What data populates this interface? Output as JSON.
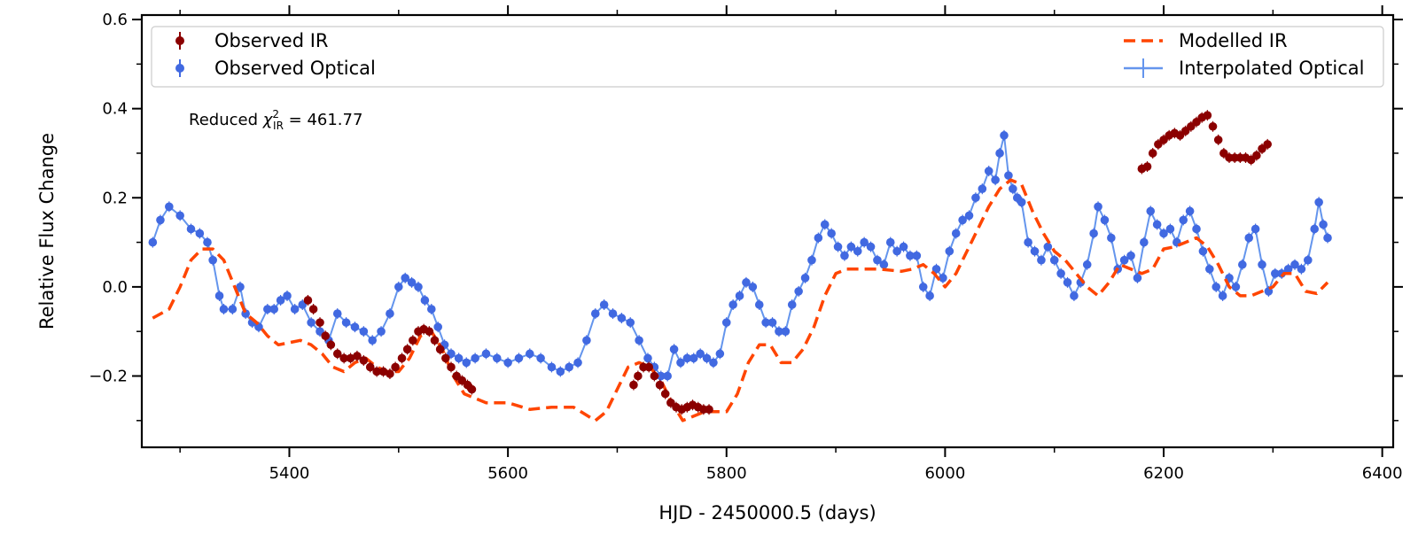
{
  "chart_data": {
    "type": "line",
    "xlabel": "HJD - 2450000.5 (days)",
    "ylabel": "Relative Flux Change",
    "xlim": [
      5265,
      6410
    ],
    "ylim": [
      -0.36,
      0.61
    ],
    "xticks": [
      5400,
      5600,
      5800,
      6000,
      6200,
      6400
    ],
    "xtick_labels": [
      "5400",
      "5600",
      "5800",
      "6000",
      "6200",
      "6400"
    ],
    "yticks": [
      -0.2,
      0.0,
      0.2,
      0.4,
      0.6
    ],
    "ytick_labels": [
      "−0.2",
      "0.0",
      "0.2",
      "0.4",
      "0.6"
    ],
    "grid": false,
    "legend_position": "top",
    "annotation": {
      "prefix": "Reduced ",
      "symbol": "χ",
      "superscript": "2",
      "subscript": "IR",
      "suffix": " = 461.77"
    },
    "colors": {
      "observed_ir": "#8b0000",
      "observed_optical": "#4169e1",
      "modelled_ir": "#ff4500",
      "interpolated_optical": "#6495ed"
    },
    "series": [
      {
        "name": "Observed IR",
        "style": "errorbar-marker",
        "x": [
          5417,
          5422,
          5428,
          5433,
          5438,
          5444,
          5450,
          5456,
          5462,
          5468,
          5474,
          5480,
          5486,
          5492,
          5497,
          5503,
          5508,
          5513,
          5518,
          5523,
          5528,
          5533,
          5538,
          5543,
          5548,
          5553,
          5558,
          5563,
          5567,
          5715,
          5719,
          5724,
          5729,
          5734,
          5739,
          5744,
          5749,
          5754,
          5759,
          5764,
          5769,
          5774,
          5779,
          5784,
          6180,
          6185,
          6190,
          6195,
          6200,
          6205,
          6210,
          6215,
          6220,
          6225,
          6230,
          6235,
          6240,
          6245,
          6250,
          6255,
          6260,
          6265,
          6270,
          6275,
          6280,
          6285,
          6290,
          6295
        ],
        "y": [
          -0.03,
          -0.05,
          -0.08,
          -0.11,
          -0.13,
          -0.15,
          -0.16,
          -0.16,
          -0.155,
          -0.165,
          -0.18,
          -0.19,
          -0.19,
          -0.195,
          -0.18,
          -0.16,
          -0.14,
          -0.12,
          -0.1,
          -0.095,
          -0.1,
          -0.12,
          -0.14,
          -0.16,
          -0.18,
          -0.2,
          -0.21,
          -0.22,
          -0.23,
          -0.22,
          -0.2,
          -0.18,
          -0.18,
          -0.2,
          -0.22,
          -0.24,
          -0.26,
          -0.27,
          -0.275,
          -0.27,
          -0.265,
          -0.27,
          -0.275,
          -0.275,
          0.265,
          0.27,
          0.3,
          0.32,
          0.33,
          0.34,
          0.345,
          0.34,
          0.35,
          0.36,
          0.37,
          0.38,
          0.385,
          0.36,
          0.33,
          0.3,
          0.29,
          0.29,
          0.29,
          0.29,
          0.285,
          0.295,
          0.31,
          0.32
        ]
      },
      {
        "name": "Observed Optical",
        "style": "errorbar-marker",
        "x": [
          5275,
          5282,
          5290,
          5300,
          5310,
          5318,
          5325,
          5330,
          5336,
          5340,
          5348,
          5355,
          5360,
          5366,
          5372,
          5380,
          5386,
          5392,
          5398,
          5405,
          5412,
          5420,
          5428,
          5436,
          5444,
          5452,
          5460,
          5468,
          5476,
          5484,
          5492,
          5500,
          5506,
          5512,
          5518,
          5524,
          5530,
          5536,
          5542,
          5548,
          5555,
          5562,
          5570,
          5580,
          5590,
          5600,
          5610,
          5620,
          5630,
          5640,
          5648,
          5656,
          5664,
          5672,
          5680,
          5688,
          5696,
          5704,
          5712,
          5720,
          5728,
          5734,
          5740,
          5746,
          5752,
          5758,
          5764,
          5770,
          5776,
          5782,
          5788,
          5794,
          5800,
          5806,
          5812,
          5818,
          5824,
          5830,
          5836,
          5842,
          5848,
          5854,
          5860,
          5866,
          5872,
          5878,
          5884,
          5890,
          5896,
          5902,
          5908,
          5914,
          5920,
          5926,
          5932,
          5938,
          5944,
          5950,
          5956,
          5962,
          5968,
          5974,
          5980,
          5986,
          5992,
          5998,
          6004,
          6010,
          6016,
          6022,
          6028,
          6034,
          6040,
          6046,
          6050,
          6054,
          6058,
          6062,
          6066,
          6070,
          6076,
          6082,
          6088,
          6094,
          6100,
          6106,
          6112,
          6118,
          6124,
          6130,
          6136,
          6140,
          6146,
          6152,
          6158,
          6164,
          6170,
          6176,
          6182,
          6188,
          6194,
          6200,
          6206,
          6212,
          6218,
          6224,
          6230,
          6236,
          6242,
          6248,
          6254,
          6260,
          6266,
          6272,
          6278,
          6284,
          6290,
          6296,
          6302,
          6308,
          6314,
          6320,
          6326,
          6332,
          6338,
          6342,
          6346,
          6350
        ],
        "y": [
          0.1,
          0.15,
          0.18,
          0.16,
          0.13,
          0.12,
          0.1,
          0.06,
          -0.02,
          -0.05,
          -0.05,
          0.0,
          -0.06,
          -0.08,
          -0.09,
          -0.05,
          -0.05,
          -0.03,
          -0.02,
          -0.05,
          -0.04,
          -0.08,
          -0.1,
          -0.12,
          -0.06,
          -0.08,
          -0.09,
          -0.1,
          -0.12,
          -0.1,
          -0.06,
          0.0,
          0.02,
          0.01,
          0.0,
          -0.03,
          -0.05,
          -0.09,
          -0.13,
          -0.15,
          -0.16,
          -0.17,
          -0.16,
          -0.15,
          -0.16,
          -0.17,
          -0.16,
          -0.15,
          -0.16,
          -0.18,
          -0.19,
          -0.18,
          -0.17,
          -0.12,
          -0.06,
          -0.04,
          -0.06,
          -0.07,
          -0.08,
          -0.12,
          -0.16,
          -0.18,
          -0.2,
          -0.2,
          -0.14,
          -0.17,
          -0.16,
          -0.16,
          -0.15,
          -0.16,
          -0.17,
          -0.15,
          -0.08,
          -0.04,
          -0.02,
          0.01,
          0.0,
          -0.04,
          -0.08,
          -0.08,
          -0.1,
          -0.1,
          -0.04,
          -0.01,
          0.02,
          0.06,
          0.11,
          0.14,
          0.12,
          0.09,
          0.07,
          0.09,
          0.08,
          0.1,
          0.09,
          0.06,
          0.05,
          0.1,
          0.08,
          0.09,
          0.07,
          0.07,
          0.0,
          -0.02,
          0.04,
          0.02,
          0.08,
          0.12,
          0.15,
          0.16,
          0.2,
          0.22,
          0.26,
          0.24,
          0.3,
          0.34,
          0.25,
          0.22,
          0.2,
          0.19,
          0.1,
          0.08,
          0.06,
          0.09,
          0.06,
          0.03,
          0.01,
          -0.02,
          0.01,
          0.05,
          0.12,
          0.18,
          0.15,
          0.11,
          0.04,
          0.06,
          0.07,
          0.02,
          0.1,
          0.17,
          0.14,
          0.12,
          0.13,
          0.1,
          0.15,
          0.17,
          0.13,
          0.08,
          0.04,
          0.0,
          -0.02,
          0.02,
          0.0,
          0.05,
          0.11,
          0.13,
          0.05,
          -0.01,
          0.03,
          0.03,
          0.04,
          0.05,
          0.04,
          0.06,
          0.13,
          0.19,
          0.14,
          0.11
        ]
      },
      {
        "name": "Modelled IR",
        "style": "dashed-line",
        "x": [
          5275,
          5290,
          5300,
          5310,
          5320,
          5330,
          5340,
          5350,
          5360,
          5370,
          5380,
          5390,
          5400,
          5410,
          5420,
          5430,
          5440,
          5450,
          5460,
          5470,
          5480,
          5490,
          5500,
          5510,
          5520,
          5530,
          5540,
          5550,
          5560,
          5570,
          5580,
          5600,
          5620,
          5640,
          5660,
          5680,
          5690,
          5700,
          5710,
          5720,
          5730,
          5740,
          5750,
          5760,
          5770,
          5780,
          5790,
          5800,
          5810,
          5820,
          5830,
          5840,
          5850,
          5860,
          5870,
          5880,
          5890,
          5900,
          5910,
          5920,
          5940,
          5960,
          5970,
          5980,
          5990,
          6000,
          6010,
          6020,
          6030,
          6040,
          6050,
          6060,
          6070,
          6080,
          6090,
          6100,
          6110,
          6120,
          6130,
          6140,
          6150,
          6160,
          6170,
          6180,
          6190,
          6200,
          6210,
          6220,
          6230,
          6240,
          6250,
          6260,
          6270,
          6280,
          6290,
          6300,
          6310,
          6320,
          6330,
          6340,
          6350
        ],
        "y": [
          -0.07,
          -0.05,
          0.0,
          0.06,
          0.085,
          0.085,
          0.06,
          0.0,
          -0.06,
          -0.08,
          -0.11,
          -0.13,
          -0.125,
          -0.12,
          -0.13,
          -0.15,
          -0.18,
          -0.19,
          -0.17,
          -0.16,
          -0.18,
          -0.19,
          -0.19,
          -0.16,
          -0.11,
          -0.1,
          -0.14,
          -0.2,
          -0.24,
          -0.25,
          -0.26,
          -0.26,
          -0.275,
          -0.27,
          -0.27,
          -0.3,
          -0.28,
          -0.23,
          -0.18,
          -0.17,
          -0.18,
          -0.21,
          -0.26,
          -0.3,
          -0.29,
          -0.28,
          -0.28,
          -0.28,
          -0.24,
          -0.17,
          -0.13,
          -0.13,
          -0.17,
          -0.17,
          -0.14,
          -0.09,
          -0.02,
          0.03,
          0.04,
          0.04,
          0.04,
          0.035,
          0.04,
          0.05,
          0.03,
          0.0,
          0.03,
          0.08,
          0.13,
          0.18,
          0.22,
          0.24,
          0.23,
          0.17,
          0.12,
          0.08,
          0.06,
          0.03,
          0.0,
          -0.02,
          0.01,
          0.05,
          0.04,
          0.03,
          0.04,
          0.085,
          0.09,
          0.1,
          0.11,
          0.09,
          0.05,
          0.0,
          -0.02,
          -0.02,
          -0.01,
          0.0,
          0.03,
          0.03,
          -0.01,
          -0.015,
          0.01
        ]
      },
      {
        "name": "Interpolated Optical",
        "style": "solid-line",
        "x": [
          5275,
          5282,
          5290,
          5300,
          5310,
          5318,
          5325,
          5330,
          5336,
          5340,
          5348,
          5355,
          5360,
          5366,
          5372,
          5380,
          5386,
          5392,
          5398,
          5405,
          5412,
          5420,
          5428,
          5436,
          5444,
          5452,
          5460,
          5468,
          5476,
          5484,
          5492,
          5500,
          5506,
          5512,
          5518,
          5524,
          5530,
          5536,
          5542,
          5548,
          5555,
          5562,
          5570,
          5580,
          5590,
          5600,
          5610,
          5620,
          5630,
          5640,
          5648,
          5656,
          5664,
          5672,
          5680,
          5688,
          5696,
          5704,
          5712,
          5720,
          5728,
          5734,
          5740,
          5746,
          5752,
          5758,
          5764,
          5770,
          5776,
          5782,
          5788,
          5794,
          5800,
          5806,
          5812,
          5818,
          5824,
          5830,
          5836,
          5842,
          5848,
          5854,
          5860,
          5866,
          5872,
          5878,
          5884,
          5890,
          5896,
          5902,
          5908,
          5914,
          5920,
          5926,
          5932,
          5938,
          5944,
          5950,
          5956,
          5962,
          5968,
          5974,
          5980,
          5986,
          5992,
          5998,
          6004,
          6010,
          6016,
          6022,
          6028,
          6034,
          6040,
          6046,
          6050,
          6054,
          6058,
          6062,
          6066,
          6070,
          6076,
          6082,
          6088,
          6094,
          6100,
          6106,
          6112,
          6118,
          6124,
          6130,
          6136,
          6140,
          6146,
          6152,
          6158,
          6164,
          6170,
          6176,
          6182,
          6188,
          6194,
          6200,
          6206,
          6212,
          6218,
          6224,
          6230,
          6236,
          6242,
          6248,
          6254,
          6260,
          6266,
          6272,
          6278,
          6284,
          6290,
          6296,
          6302,
          6308,
          6314,
          6320,
          6326,
          6332,
          6338,
          6342,
          6346,
          6350
        ],
        "y": [
          0.1,
          0.15,
          0.18,
          0.16,
          0.13,
          0.12,
          0.1,
          0.06,
          -0.02,
          -0.05,
          -0.05,
          0.0,
          -0.06,
          -0.08,
          -0.09,
          -0.05,
          -0.05,
          -0.03,
          -0.02,
          -0.05,
          -0.04,
          -0.08,
          -0.1,
          -0.12,
          -0.06,
          -0.08,
          -0.09,
          -0.1,
          -0.12,
          -0.1,
          -0.06,
          0.0,
          0.02,
          0.01,
          0.0,
          -0.03,
          -0.05,
          -0.09,
          -0.13,
          -0.15,
          -0.16,
          -0.17,
          -0.16,
          -0.15,
          -0.16,
          -0.17,
          -0.16,
          -0.15,
          -0.16,
          -0.18,
          -0.19,
          -0.18,
          -0.17,
          -0.12,
          -0.06,
          -0.04,
          -0.06,
          -0.07,
          -0.08,
          -0.12,
          -0.16,
          -0.18,
          -0.2,
          -0.2,
          -0.14,
          -0.17,
          -0.16,
          -0.16,
          -0.15,
          -0.16,
          -0.17,
          -0.15,
          -0.08,
          -0.04,
          -0.02,
          0.01,
          0.0,
          -0.04,
          -0.08,
          -0.08,
          -0.1,
          -0.1,
          -0.04,
          -0.01,
          0.02,
          0.06,
          0.11,
          0.14,
          0.12,
          0.09,
          0.07,
          0.09,
          0.08,
          0.1,
          0.09,
          0.06,
          0.05,
          0.1,
          0.08,
          0.09,
          0.07,
          0.07,
          0.0,
          -0.02,
          0.04,
          0.02,
          0.08,
          0.12,
          0.15,
          0.16,
          0.2,
          0.22,
          0.26,
          0.24,
          0.3,
          0.34,
          0.25,
          0.22,
          0.2,
          0.19,
          0.1,
          0.08,
          0.06,
          0.09,
          0.06,
          0.03,
          0.01,
          -0.02,
          0.01,
          0.05,
          0.12,
          0.18,
          0.15,
          0.11,
          0.04,
          0.06,
          0.07,
          0.02,
          0.1,
          0.17,
          0.14,
          0.12,
          0.13,
          0.1,
          0.15,
          0.17,
          0.13,
          0.08,
          0.04,
          0.0,
          -0.02,
          0.02,
          0.0,
          0.05,
          0.11,
          0.13,
          0.05,
          -0.01,
          0.03,
          0.03,
          0.04,
          0.05,
          0.04,
          0.06,
          0.13,
          0.19,
          0.14,
          0.11
        ]
      }
    ]
  }
}
